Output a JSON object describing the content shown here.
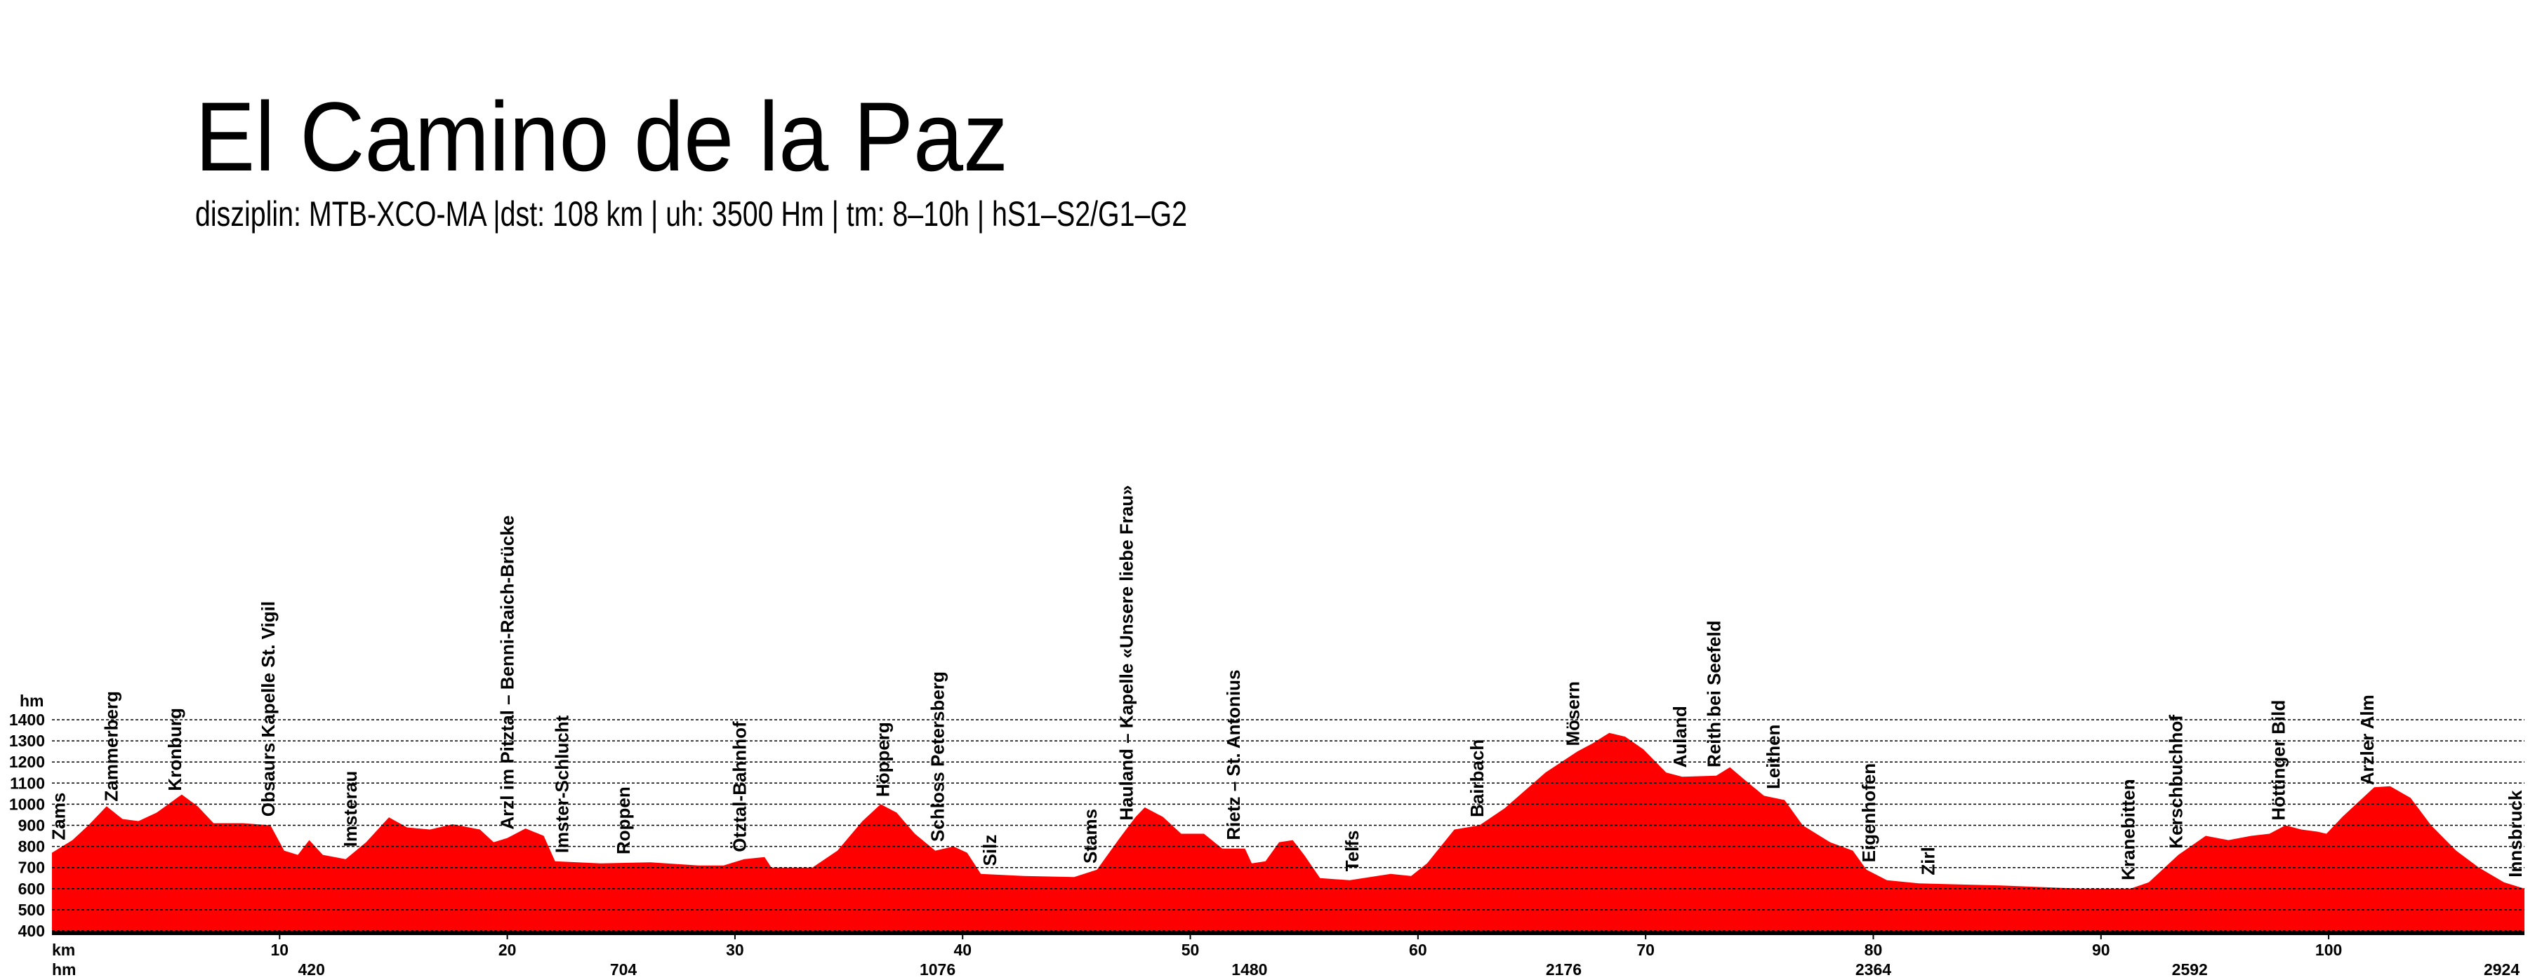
{
  "chart_data": {
    "type": "area",
    "title": "El Camino de la Paz",
    "subtitle": "disziplin: MTB-XCO-MA  |dst: 108 km | uh: 3500 Hm | tm: 8–10h | hS1–S2/G1–G2",
    "x_label": "km",
    "y_label": "hm",
    "climb_label": "hm",
    "color": "#ff0000",
    "grid": true,
    "xlim": [
      0,
      108.6
    ],
    "ylim": [
      400,
      1400
    ],
    "xticks": [
      10,
      20,
      30,
      40,
      50,
      60,
      70,
      80,
      90,
      100
    ],
    "yticks": [
      400,
      500,
      600,
      700,
      800,
      900,
      1000,
      1100,
      1200,
      1300,
      1400
    ],
    "x": [
      0,
      0.9,
      1.6,
      2.4,
      3.1,
      3.8,
      4.6,
      5.7,
      6.4,
      7.1,
      8.4,
      9.6,
      10.2,
      10.8,
      11.3,
      11.9,
      12.9,
      13.8,
      14.8,
      15.6,
      16.6,
      17.6,
      18.8,
      19.4,
      20,
      20.8,
      21.6,
      22.1,
      24.1,
      26.3,
      28.4,
      29.5,
      30.4,
      31.3,
      31.6,
      33.4,
      34.5,
      35.6,
      36.4,
      37.1,
      37.9,
      38.8,
      39.6,
      40.2,
      40.8,
      42.7,
      44.9,
      45.9,
      46.9,
      47.6,
      48,
      48.8,
      49.6,
      50.6,
      51.4,
      52.4,
      52.7,
      53.3,
      53.9,
      54.5,
      55,
      55.7,
      57,
      58.8,
      59.7,
      60.4,
      61.6,
      62.7,
      63.8,
      65.6,
      67,
      67.7,
      68.4,
      69.1,
      69.9,
      70.9,
      71.6,
      73.1,
      73.7,
      74.3,
      75.2,
      76.1,
      76.9,
      78.1,
      79.1,
      79.7,
      80.6,
      82,
      85.6,
      89.1,
      91.3,
      92.1,
      93.4,
      94.6,
      95.6,
      96.6,
      97.4,
      98.1,
      98.8,
      99.5,
      99.9,
      100.6,
      101.1,
      102,
      102.7,
      103.6,
      104.5,
      105.6,
      106.6,
      107.7,
      108.6
    ],
    "values": [
      770,
      830,
      900,
      990,
      930,
      920,
      960,
      1046,
      990,
      910,
      910,
      900,
      780,
      760,
      830,
      760,
      740,
      820,
      938,
      890,
      880,
      905,
      880,
      820,
      840,
      885,
      850,
      730,
      720,
      725,
      710,
      710,
      740,
      750,
      700,
      700,
      780,
      920,
      1000,
      960,
      860,
      780,
      800,
      770,
      670,
      660,
      655,
      690,
      840,
      940,
      985,
      940,
      860,
      860,
      790,
      790,
      720,
      730,
      820,
      830,
      760,
      650,
      640,
      670,
      660,
      720,
      880,
      900,
      980,
      1150,
      1250,
      1290,
      1338,
      1320,
      1260,
      1150,
      1130,
      1135,
      1175,
      1120,
      1040,
      1020,
      900,
      820,
      780,
      690,
      640,
      625,
      615,
      600,
      600,
      630,
      760,
      850,
      830,
      850,
      860,
      900,
      880,
      870,
      860,
      940,
      990,
      1080,
      1085,
      1030,
      900,
      780,
      700,
      630,
      600
    ],
    "waypoints": [
      {
        "name": "Zams",
        "x": 0.3
      },
      {
        "name": "Zammerberg",
        "x": 2.6
      },
      {
        "name": "Kronburg",
        "x": 5.4
      },
      {
        "name": "Obsaurs Kapelle St. Vigil",
        "x": 9.5
      },
      {
        "name": "Imsterau",
        "x": 13.1
      },
      {
        "name": "Arzl im Pitztal – Benni-Raich-Brücke",
        "x": 20
      },
      {
        "name": "Imster-Schlucht",
        "x": 22.4
      },
      {
        "name": "Roppen",
        "x": 25.1
      },
      {
        "name": "Ötztal-Bahnhof",
        "x": 30.2
      },
      {
        "name": "Höpperg",
        "x": 36.5
      },
      {
        "name": "Schloss Petersberg",
        "x": 38.9
      },
      {
        "name": "Silz",
        "x": 41.2
      },
      {
        "name": "Stams",
        "x": 45.6
      },
      {
        "name": "Hauland – Kapelle «Unsere liebe Frau»",
        "x": 47.2
      },
      {
        "name": "Rietz – St. Antonius",
        "x": 51.9
      },
      {
        "name": "Telfs",
        "x": 57.1
      },
      {
        "name": "Bairbach",
        "x": 62.6
      },
      {
        "name": "Mösern",
        "x": 66.8
      },
      {
        "name": "Auland",
        "x": 71.5
      },
      {
        "name": "Reith bei Seefeld",
        "x": 73
      },
      {
        "name": "Leithen",
        "x": 75.6
      },
      {
        "name": "Eigenhofen",
        "x": 79.8
      },
      {
        "name": "Zirl",
        "x": 82.4
      },
      {
        "name": "Kranebitten",
        "x": 91.2
      },
      {
        "name": "Kerschbuchhof",
        "x": 93.3
      },
      {
        "name": "Höttinger Bild",
        "x": 97.8
      },
      {
        "name": "Arzler Alm",
        "x": 101.7
      },
      {
        "name": "Innsbruck",
        "x": 108.2
      }
    ],
    "climb_marks": [
      {
        "x": 11.4,
        "value": 420
      },
      {
        "x": 25.1,
        "value": 704
      },
      {
        "x": 38.9,
        "value": 1076
      },
      {
        "x": 52.6,
        "value": 1480
      },
      {
        "x": 66.4,
        "value": 2176
      },
      {
        "x": 80,
        "value": 2364
      },
      {
        "x": 93.9,
        "value": 2592
      },
      {
        "x": 107.6,
        "value": 2924
      }
    ]
  }
}
